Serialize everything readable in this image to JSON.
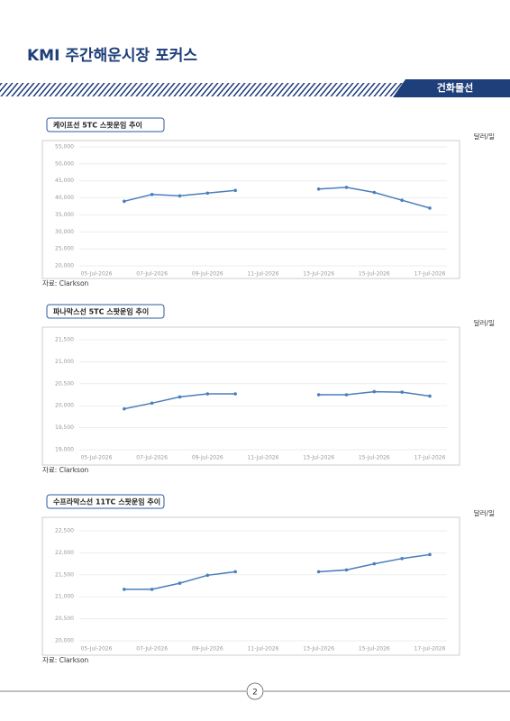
{
  "header": {
    "title": "KMI 주간해운시장 포커스",
    "section": "건화물선"
  },
  "chart_data": [
    {
      "type": "line",
      "title": "케이프선 5TC 스팟운임 추이",
      "unit": "달러/일",
      "source": "자료: Clarkson",
      "x": [
        "06-Jul-2026",
        "07-Jul-2026",
        "08-Jul-2026",
        "09-Jul-2026",
        "10-Jul-2026",
        "11-Jul-2026",
        "12-Jul-2026",
        "13-Jul-2026",
        "14-Jul-2026",
        "15-Jul-2026",
        "16-Jul-2026",
        "17-Jul-2026"
      ],
      "values": [
        39000,
        41000,
        40600,
        41400,
        42200,
        null,
        null,
        42600,
        43100,
        41600,
        39300,
        37000
      ],
      "color": "#4a7ebb",
      "xlim": [
        "05-Jul-2026",
        "17-Jul-2026"
      ],
      "xticks": [
        "05-Jul-2026",
        "07-Jul-2026",
        "09-Jul-2026",
        "11-Jul-2026",
        "13-Jul-2026",
        "15-Jul-2026",
        "17-Jul-2026"
      ],
      "ylim": [
        20000,
        55000
      ],
      "yticks": [
        {
          "value": 20000,
          "label": "20,000"
        },
        {
          "value": 25000,
          "label": "25,000"
        },
        {
          "value": 30000,
          "label": "30,000"
        },
        {
          "value": 35000,
          "label": "35,000"
        },
        {
          "value": 40000,
          "label": "40,000"
        },
        {
          "value": 45000,
          "label": "45,000"
        },
        {
          "value": 50000,
          "label": "50,000"
        },
        {
          "value": 55000,
          "label": "55,000"
        }
      ],
      "grid": true
    },
    {
      "type": "line",
      "title": "파나막스선 5TC 스팟운임 추이",
      "unit": "달러/일",
      "source": "자료: Clarkson",
      "x": [
        "06-Jul-2026",
        "07-Jul-2026",
        "08-Jul-2026",
        "09-Jul-2026",
        "10-Jul-2026",
        "11-Jul-2026",
        "12-Jul-2026",
        "13-Jul-2026",
        "14-Jul-2026",
        "15-Jul-2026",
        "16-Jul-2026",
        "17-Jul-2026"
      ],
      "values": [
        19930,
        20060,
        20200,
        20270,
        20270,
        null,
        null,
        20250,
        20250,
        20320,
        20310,
        20220
      ],
      "color": "#4a7ebb",
      "xlim": [
        "05-Jul-2026",
        "17-Jul-2026"
      ],
      "xticks": [
        "05-Jul-2026",
        "07-Jul-2026",
        "09-Jul-2026",
        "11-Jul-2026",
        "13-Jul-2026",
        "15-Jul-2026",
        "17-Jul-2026"
      ],
      "ylim": [
        19000,
        21500
      ],
      "yticks": [
        {
          "value": 19000,
          "label": "19,000"
        },
        {
          "value": 19500,
          "label": "19,500"
        },
        {
          "value": 20000,
          "label": "20,000"
        },
        {
          "value": 20500,
          "label": "20,500"
        },
        {
          "value": 21000,
          "label": "21,000"
        },
        {
          "value": 21500,
          "label": "21,500"
        }
      ],
      "grid": true
    },
    {
      "type": "line",
      "title": "수프라막스선 11TC 스팟운임 추이",
      "unit": "달러/일",
      "source": "자료: Clarkson",
      "x": [
        "06-Jul-2026",
        "07-Jul-2026",
        "08-Jul-2026",
        "09-Jul-2026",
        "10-Jul-2026",
        "11-Jul-2026",
        "12-Jul-2026",
        "13-Jul-2026",
        "14-Jul-2026",
        "15-Jul-2026",
        "16-Jul-2026",
        "17-Jul-2026"
      ],
      "values": [
        21170,
        21170,
        21310,
        21490,
        21570,
        null,
        null,
        21570,
        21610,
        21750,
        21870,
        21960
      ],
      "color": "#4a7ebb",
      "xlim": [
        "05-Jul-2026",
        "17-Jul-2026"
      ],
      "xticks": [
        "05-Jul-2026",
        "07-Jul-2026",
        "09-Jul-2026",
        "11-Jul-2026",
        "13-Jul-2026",
        "15-Jul-2026",
        "17-Jul-2026"
      ],
      "ylim": [
        20000,
        22500
      ],
      "yticks": [
        {
          "value": 20000,
          "label": "20,000"
        },
        {
          "value": 20500,
          "label": "20,500"
        },
        {
          "value": 21000,
          "label": "21,000"
        },
        {
          "value": 21500,
          "label": "21,500"
        },
        {
          "value": 22000,
          "label": "22,000"
        },
        {
          "value": 22500,
          "label": "22,500"
        }
      ],
      "grid": true
    }
  ],
  "footer": {
    "page": "2"
  }
}
